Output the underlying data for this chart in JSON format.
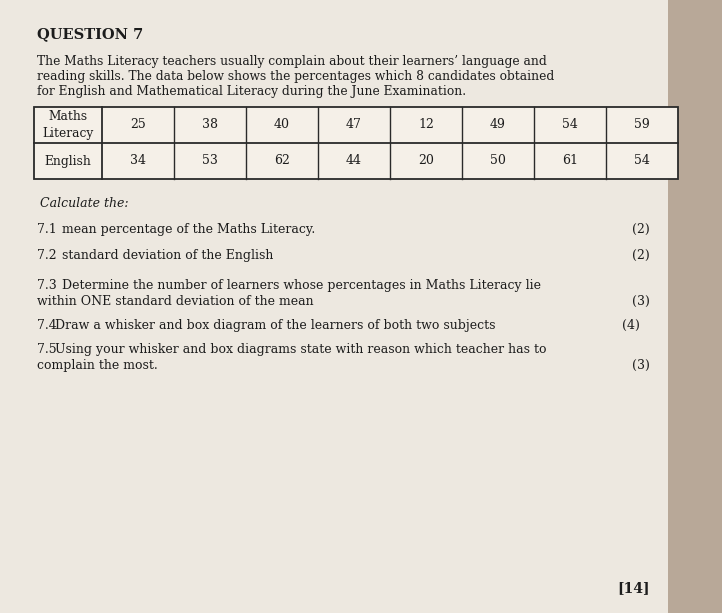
{
  "title": "QUESTION 7",
  "intro_line1": "The Maths Literacy teachers usually complain about their learners’ language and",
  "intro_line2": "reading skills. The data below shows the percentages which 8 candidates obtained",
  "intro_line3": "for English and Mathematical Literacy during the June Examination.",
  "table": {
    "row1_label": "Maths\nLiteracy",
    "row1_values": [
      25,
      38,
      40,
      47,
      12,
      49,
      54,
      59
    ],
    "row2_label": "English",
    "row2_values": [
      34,
      53,
      62,
      44,
      20,
      50,
      61,
      54
    ]
  },
  "calculate_label": "Calculate the:",
  "q71_num": "7.1",
  "q71_text": "mean percentage of the Maths Literacy.",
  "q71_marks": "(2)",
  "q72_num": "7.2",
  "q72_text": "standard deviation of the English",
  "q72_marks": "(2)",
  "q73_num": "7.3",
  "q73_text_a": "Determine the number of learners whose percentages in Maths Literacy lie",
  "q73_text_b": "within ONE standard deviation of the mean",
  "q73_marks": "(3)",
  "q74_num": "7.4",
  "q74_text": "Draw a whisker and box diagram of the learners of both two subjects",
  "q74_marks": "(4)",
  "q75_num": "7.5",
  "q75_text_a": "Using your whisker and box diagrams state with reason which teacher has to",
  "q75_text_b": "complain the most.",
  "q75_marks": "(3)",
  "total": "[14]",
  "bg_color": "#b8a898",
  "paper_color": "#ede8e0",
  "text_color": "#1c1c1c",
  "table_border_color": "#2a2a2a",
  "right_bg": "#4a7a3a"
}
